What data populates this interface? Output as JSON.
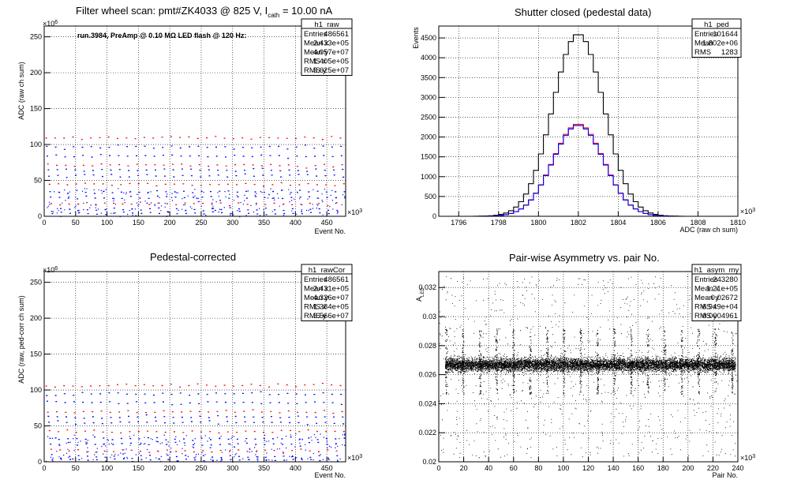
{
  "chart_data": [
    {
      "type": "scatter",
      "title": "Filter wheel scan: pmt#ZK4033 @   825 V, I",
      "title_sub": "cath",
      "title_tail": " = 10.00 nA",
      "annotation": "run.3984, PreAmp @ 0.10 MΩ LED flash @  120 Hz:",
      "xlabel": "Event No.",
      "ylabel": "ADC (raw ch sum)",
      "x_exponent": "×10",
      "x_exponent_power": "3",
      "y_exponent": "×10",
      "y_exponent_power": "6",
      "xlim": [
        0,
        480
      ],
      "ylim": [
        0,
        265
      ],
      "xticks": [
        "0",
        "50",
        "100",
        "150",
        "200",
        "250",
        "300",
        "350",
        "400",
        "450"
      ],
      "yticks": [
        "0",
        "50",
        "100",
        "150",
        "200",
        "250"
      ],
      "levels": [
        110,
        97,
        85,
        72,
        65,
        57,
        45,
        35,
        27,
        18,
        10,
        5
      ],
      "flash_period": 14.2,
      "colors": {
        "points": "#0000ff",
        "upper": "#ff0000"
      },
      "stats": {
        "name": "h1_raw",
        "rows": [
          [
            "Entries",
            "486561"
          ],
          [
            "Mean x",
            "2.433e+05"
          ],
          [
            "Mean y",
            "4.057e+07"
          ],
          [
            "RMS x",
            "1.405e+05"
          ],
          [
            "RMS y",
            "3.625e+07"
          ]
        ]
      }
    },
    {
      "type": "line",
      "title": "Shutter closed (pedestal data)",
      "xlabel": "ADC (raw ch sum)",
      "ylabel": "Events",
      "x_exponent": "×10",
      "x_exponent_power": "3",
      "xlim": [
        1795,
        1810
      ],
      "ylim": [
        0,
        4800
      ],
      "xticks": [
        "1796",
        "1798",
        "1800",
        "1802",
        "1804",
        "1806",
        "1808",
        "1810"
      ],
      "yticks": [
        "0",
        "500",
        "1000",
        "1500",
        "2000",
        "2500",
        "3000",
        "3500",
        "4000",
        "4500"
      ],
      "series": [
        {
          "color": "#000000",
          "mean": 1802.0,
          "sigma": 1.28,
          "peak": 4600
        },
        {
          "color": "#ff0000",
          "mean": 1802.0,
          "sigma": 1.28,
          "peak": 2330
        },
        {
          "color": "#0000ff",
          "mean": 1802.0,
          "sigma": 1.28,
          "peak": 2300
        }
      ],
      "stats": {
        "name": "h1_ped",
        "rows": [
          [
            "Entries",
            "101644"
          ],
          [
            "Mean",
            "1.802e+06"
          ],
          [
            "RMS",
            "1283"
          ]
        ]
      }
    },
    {
      "type": "scatter",
      "title": "Pedestal-corrected",
      "xlabel": "Event No.",
      "ylabel": "ADC (raw, ped-corr ch sum)",
      "x_exponent": "×10",
      "x_exponent_power": "3",
      "y_exponent": "×10",
      "y_exponent_power": "6",
      "xlim": [
        0,
        480
      ],
      "ylim": [
        0,
        265
      ],
      "xticks": [
        "0",
        "50",
        "100",
        "150",
        "200",
        "250",
        "300",
        "350",
        "400",
        "450"
      ],
      "yticks": [
        "0",
        "50",
        "100",
        "150",
        "200",
        "250"
      ],
      "levels": [
        107,
        95,
        83,
        70,
        63,
        55,
        43,
        33,
        25,
        16,
        8,
        3
      ],
      "flash_period": 14.2,
      "colors": {
        "points": "#0000ff",
        "upper": "#ff0000"
      },
      "stats": {
        "name": "h1_rawCor",
        "rows": [
          [
            "Entries",
            "486561"
          ],
          [
            "Mean x",
            "2.431e+05"
          ],
          [
            "Mean y",
            "4.326e+07"
          ],
          [
            "RMS x",
            "1.384e+05"
          ],
          [
            "RMS y",
            "3.566e+07"
          ]
        ]
      }
    },
    {
      "type": "scatter",
      "title": "Pair-wise Asymmetry vs. pair No.",
      "xlabel": "Pair No.",
      "ylabel": "A",
      "ylabel_sub": "LED",
      "x_exponent": "×10",
      "x_exponent_power": "3",
      "xlim": [
        0,
        240
      ],
      "ylim": [
        0.02,
        0.0331
      ],
      "xticks": [
        "0",
        "20",
        "40",
        "60",
        "80",
        "100",
        "120",
        "140",
        "160",
        "180",
        "200",
        "220",
        "240"
      ],
      "yticks": [
        "0.02",
        "0.022",
        "0.024",
        "0.026",
        "0.028",
        "0.03",
        "0.032"
      ],
      "band_center": 0.0267,
      "band_halfwidth": 0.0005,
      "spike_period": 13.5,
      "colors": {
        "points": "#000000"
      },
      "stats": {
        "name": "h1_asym_my",
        "rows": [
          [
            "Entries",
            "243280"
          ],
          [
            "Mean x",
            "1.21e+05"
          ],
          [
            "Mean y",
            "0.02672"
          ],
          [
            "RMS x",
            "6.949e+04"
          ],
          [
            "RMS y",
            "0.0004961"
          ]
        ]
      }
    }
  ]
}
